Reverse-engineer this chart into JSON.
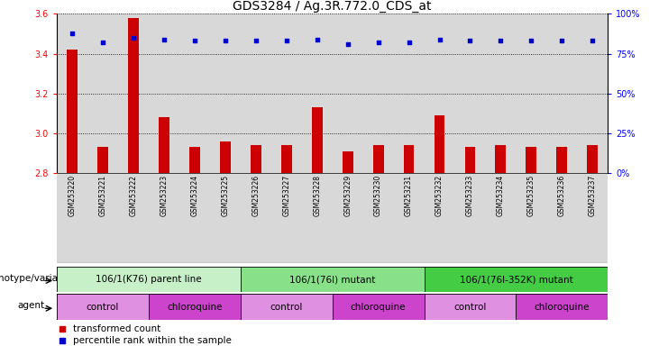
{
  "title": "GDS3284 / Ag.3R.772.0_CDS_at",
  "samples": [
    "GSM253220",
    "GSM253221",
    "GSM253222",
    "GSM253223",
    "GSM253224",
    "GSM253225",
    "GSM253226",
    "GSM253227",
    "GSM253228",
    "GSM253229",
    "GSM253230",
    "GSM253231",
    "GSM253232",
    "GSM253233",
    "GSM253234",
    "GSM253235",
    "GSM253236",
    "GSM253237"
  ],
  "transformed_count": [
    3.42,
    2.93,
    3.58,
    3.08,
    2.93,
    2.96,
    2.94,
    2.94,
    3.13,
    2.91,
    2.94,
    2.94,
    3.09,
    2.93,
    2.94,
    2.93,
    2.93,
    2.94
  ],
  "percentile_rank": [
    88,
    82,
    85,
    84,
    83,
    83,
    83,
    83,
    84,
    81,
    82,
    82,
    84,
    83,
    83,
    83,
    83,
    83
  ],
  "ylim_left": [
    2.8,
    3.6
  ],
  "ylim_right": [
    0,
    100
  ],
  "yticks_left": [
    2.8,
    3.0,
    3.2,
    3.4,
    3.6
  ],
  "yticks_right": [
    0,
    25,
    50,
    75,
    100
  ],
  "bar_color": "#cc0000",
  "dot_color": "#0000cc",
  "background_color": "#ffffff",
  "bar_bg_color": "#d8d8d8",
  "genotype_groups": [
    {
      "label": "106/1(K76) parent line",
      "start": 0,
      "end": 6,
      "color": "#c8f0c8"
    },
    {
      "label": "106/1(76I) mutant",
      "start": 6,
      "end": 12,
      "color": "#88e088"
    },
    {
      "label": "106/1(76I-352K) mutant",
      "start": 12,
      "end": 18,
      "color": "#44cc44"
    }
  ],
  "agent_groups": [
    {
      "label": "control",
      "start": 0,
      "end": 3,
      "color": "#e090e0"
    },
    {
      "label": "chloroquine",
      "start": 3,
      "end": 6,
      "color": "#cc44cc"
    },
    {
      "label": "control",
      "start": 6,
      "end": 9,
      "color": "#e090e0"
    },
    {
      "label": "chloroquine",
      "start": 9,
      "end": 12,
      "color": "#cc44cc"
    },
    {
      "label": "control",
      "start": 12,
      "end": 15,
      "color": "#e090e0"
    },
    {
      "label": "chloroquine",
      "start": 15,
      "end": 18,
      "color": "#cc44cc"
    }
  ],
  "title_fontsize": 10,
  "tick_fontsize": 7,
  "label_fontsize": 7.5,
  "sample_fontsize": 5.5
}
